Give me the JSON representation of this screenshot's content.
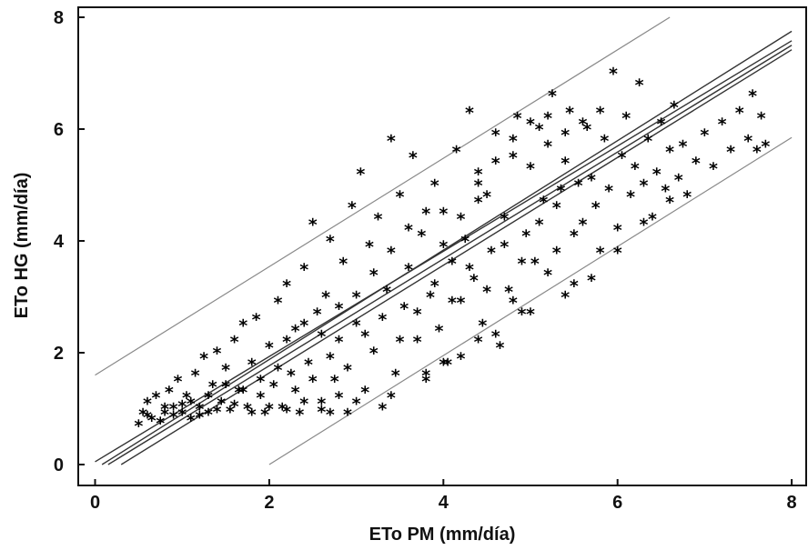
{
  "chart_data": {
    "type": "scatter",
    "title": "",
    "xlabel": "ETo PM (mm/día)",
    "ylabel": "ETo HG (mm/día)",
    "xlim": [
      -0.2,
      8.1
    ],
    "ylim": [
      -0.2,
      8.1
    ],
    "x_ticks": [
      "0",
      "2",
      "4",
      "6",
      "8"
    ],
    "y_ticks": [
      "0",
      "2",
      "4",
      "6",
      "8"
    ],
    "marker": "*",
    "grid": false,
    "lines": [
      {
        "role": "regression",
        "points": [
          [
            0.0,
            0.05
          ],
          [
            8.0,
            7.58
          ]
        ]
      },
      {
        "role": "confidence-upper",
        "points": [
          [
            0.08,
            0.0
          ],
          [
            8.0,
            7.75
          ]
        ]
      },
      {
        "role": "confidence-lower",
        "points": [
          [
            0.3,
            0.0
          ],
          [
            8.0,
            7.42
          ]
        ]
      },
      {
        "role": "confidence-lower-2",
        "points": [
          [
            0.15,
            0.0
          ],
          [
            8.0,
            7.5
          ]
        ]
      },
      {
        "role": "prediction-upper",
        "points": [
          [
            0.0,
            1.6
          ],
          [
            6.6,
            8.0
          ]
        ]
      },
      {
        "role": "prediction-lower",
        "points": [
          [
            2.0,
            0.0
          ],
          [
            8.0,
            5.85
          ]
        ]
      }
    ],
    "points": [
      [
        0.5,
        0.7
      ],
      [
        0.55,
        0.9
      ],
      [
        0.6,
        1.1
      ],
      [
        0.65,
        0.8
      ],
      [
        0.7,
        1.2
      ],
      [
        0.75,
        0.75
      ],
      [
        0.8,
        1.0
      ],
      [
        0.85,
        1.3
      ],
      [
        0.9,
        0.85
      ],
      [
        0.95,
        1.5
      ],
      [
        1.0,
        0.9
      ],
      [
        1.05,
        1.2
      ],
      [
        1.1,
        0.8
      ],
      [
        1.15,
        1.6
      ],
      [
        1.2,
        1.0
      ],
      [
        1.25,
        1.9
      ],
      [
        1.3,
        0.9
      ],
      [
        1.35,
        1.4
      ],
      [
        1.4,
        2.0
      ],
      [
        1.45,
        1.1
      ],
      [
        1.5,
        1.7
      ],
      [
        1.55,
        0.95
      ],
      [
        1.6,
        2.2
      ],
      [
        1.65,
        1.3
      ],
      [
        1.7,
        2.5
      ],
      [
        1.75,
        1.0
      ],
      [
        1.8,
        1.8
      ],
      [
        1.85,
        2.6
      ],
      [
        1.9,
        1.2
      ],
      [
        1.95,
        0.9
      ],
      [
        2.0,
        2.1
      ],
      [
        2.05,
        1.4
      ],
      [
        2.1,
        2.9
      ],
      [
        2.15,
        1.0
      ],
      [
        2.2,
        3.2
      ],
      [
        2.25,
        1.6
      ],
      [
        2.3,
        2.4
      ],
      [
        2.35,
        0.9
      ],
      [
        2.4,
        3.5
      ],
      [
        2.45,
        1.8
      ],
      [
        2.5,
        4.3
      ],
      [
        2.55,
        2.7
      ],
      [
        2.6,
        1.1
      ],
      [
        2.65,
        3.0
      ],
      [
        2.7,
        4.0
      ],
      [
        2.75,
        1.5
      ],
      [
        2.8,
        2.2
      ],
      [
        2.85,
        3.6
      ],
      [
        2.9,
        0.9
      ],
      [
        2.95,
        4.6
      ],
      [
        3.0,
        2.5
      ],
      [
        3.05,
        5.2
      ],
      [
        3.1,
        1.3
      ],
      [
        3.15,
        3.9
      ],
      [
        3.2,
        2.0
      ],
      [
        3.25,
        4.4
      ],
      [
        3.3,
        1.0
      ],
      [
        3.35,
        3.1
      ],
      [
        3.4,
        5.8
      ],
      [
        3.45,
        1.6
      ],
      [
        3.5,
        4.8
      ],
      [
        3.55,
        2.8
      ],
      [
        3.6,
        3.5
      ],
      [
        3.65,
        5.5
      ],
      [
        3.7,
        2.2
      ],
      [
        3.75,
        4.1
      ],
      [
        3.8,
        1.5
      ],
      [
        3.85,
        3.0
      ],
      [
        3.9,
        5.0
      ],
      [
        3.95,
        2.4
      ],
      [
        4.0,
        4.5
      ],
      [
        4.05,
        1.8
      ],
      [
        4.1,
        3.6
      ],
      [
        4.15,
        5.6
      ],
      [
        4.2,
        2.9
      ],
      [
        4.25,
        4.0
      ],
      [
        4.3,
        6.3
      ],
      [
        4.35,
        3.3
      ],
      [
        4.4,
        5.2
      ],
      [
        4.45,
        2.5
      ],
      [
        4.5,
        4.8
      ],
      [
        4.55,
        3.8
      ],
      [
        4.6,
        5.9
      ],
      [
        4.65,
        2.1
      ],
      [
        4.7,
        4.4
      ],
      [
        4.75,
        3.1
      ],
      [
        4.8,
        5.5
      ],
      [
        4.85,
        6.2
      ],
      [
        4.9,
        2.7
      ],
      [
        4.95,
        4.1
      ],
      [
        5.0,
        5.3
      ],
      [
        5.05,
        3.6
      ],
      [
        5.1,
        6.0
      ],
      [
        5.15,
        4.7
      ],
      [
        5.2,
        5.7
      ],
      [
        5.25,
        6.6
      ],
      [
        5.3,
        3.8
      ],
      [
        5.35,
        4.9
      ],
      [
        5.4,
        5.4
      ],
      [
        5.45,
        6.3
      ],
      [
        5.5,
        3.2
      ],
      [
        5.55,
        5.0
      ],
      [
        5.6,
        4.3
      ],
      [
        5.65,
        6.0
      ],
      [
        5.7,
        5.1
      ],
      [
        5.75,
        4.6
      ],
      [
        5.8,
        3.8
      ],
      [
        5.85,
        5.8
      ],
      [
        5.9,
        4.9
      ],
      [
        5.95,
        7.0
      ],
      [
        6.0,
        4.2
      ],
      [
        6.05,
        5.5
      ],
      [
        6.1,
        6.2
      ],
      [
        6.15,
        4.8
      ],
      [
        6.2,
        5.3
      ],
      [
        6.25,
        6.8
      ],
      [
        6.3,
        5.0
      ],
      [
        6.35,
        5.8
      ],
      [
        6.4,
        4.4
      ],
      [
        6.45,
        5.2
      ],
      [
        6.5,
        6.1
      ],
      [
        6.55,
        4.9
      ],
      [
        6.6,
        5.6
      ],
      [
        6.65,
        6.4
      ],
      [
        6.7,
        5.1
      ],
      [
        6.75,
        5.7
      ],
      [
        6.8,
        4.8
      ],
      [
        6.9,
        5.4
      ],
      [
        7.0,
        5.9
      ],
      [
        7.1,
        5.3
      ],
      [
        7.2,
        6.1
      ],
      [
        7.3,
        5.6
      ],
      [
        7.4,
        6.3
      ],
      [
        7.5,
        5.8
      ],
      [
        7.55,
        6.6
      ],
      [
        7.6,
        5.6
      ],
      [
        7.65,
        6.2
      ],
      [
        7.7,
        5.7
      ],
      [
        0.6,
        0.85
      ],
      [
        0.8,
        0.9
      ],
      [
        1.0,
        1.05
      ],
      [
        1.2,
        0.85
      ],
      [
        1.4,
        0.95
      ],
      [
        1.6,
        1.05
      ],
      [
        1.8,
        0.9
      ],
      [
        2.0,
        1.0
      ],
      [
        2.2,
        0.95
      ],
      [
        2.4,
        1.1
      ],
      [
        2.6,
        0.95
      ],
      [
        2.8,
        1.2
      ],
      [
        1.7,
        1.3
      ],
      [
        1.9,
        1.5
      ],
      [
        2.1,
        1.7
      ],
      [
        2.3,
        1.3
      ],
      [
        2.5,
        1.5
      ],
      [
        2.7,
        1.9
      ],
      [
        2.9,
        1.7
      ],
      [
        3.1,
        2.3
      ],
      [
        3.3,
        2.6
      ],
      [
        3.5,
        2.2
      ],
      [
        3.7,
        2.7
      ],
      [
        3.9,
        3.2
      ],
      [
        4.1,
        2.9
      ],
      [
        4.3,
        3.5
      ],
      [
        4.5,
        3.1
      ],
      [
        4.7,
        3.9
      ],
      [
        4.9,
        3.6
      ],
      [
        5.1,
        4.3
      ],
      [
        5.3,
        4.6
      ],
      [
        5.5,
        4.1
      ],
      [
        3.0,
        3.0
      ],
      [
        3.2,
        3.4
      ],
      [
        3.4,
        3.8
      ],
      [
        3.6,
        4.2
      ],
      [
        3.8,
        4.5
      ],
      [
        4.0,
        3.9
      ],
      [
        4.2,
        4.4
      ],
      [
        4.4,
        4.7
      ],
      [
        2.2,
        2.2
      ],
      [
        2.4,
        2.5
      ],
      [
        2.6,
        2.3
      ],
      [
        2.8,
        2.8
      ],
      [
        1.5,
        1.4
      ],
      [
        1.3,
        1.2
      ],
      [
        1.1,
        1.1
      ],
      [
        0.9,
        1.0
      ],
      [
        5.8,
        6.3
      ],
      [
        5.6,
        6.1
      ],
      [
        5.4,
        5.9
      ],
      [
        5.2,
        6.2
      ],
      [
        5.0,
        6.1
      ],
      [
        4.8,
        5.8
      ],
      [
        4.6,
        5.4
      ],
      [
        4.4,
        5.0
      ],
      [
        6.3,
        4.3
      ],
      [
        6.6,
        4.7
      ],
      [
        6.0,
        3.8
      ],
      [
        5.7,
        3.3
      ],
      [
        5.4,
        3.0
      ],
      [
        5.0,
        2.7
      ],
      [
        4.6,
        2.3
      ],
      [
        4.2,
        1.9
      ],
      [
        3.8,
        1.6
      ],
      [
        3.4,
        1.2
      ],
      [
        3.0,
        1.1
      ],
      [
        2.7,
        0.9
      ],
      [
        4.0,
        1.8
      ],
      [
        4.4,
        2.2
      ],
      [
        4.8,
        2.9
      ],
      [
        5.2,
        3.4
      ]
    ]
  }
}
